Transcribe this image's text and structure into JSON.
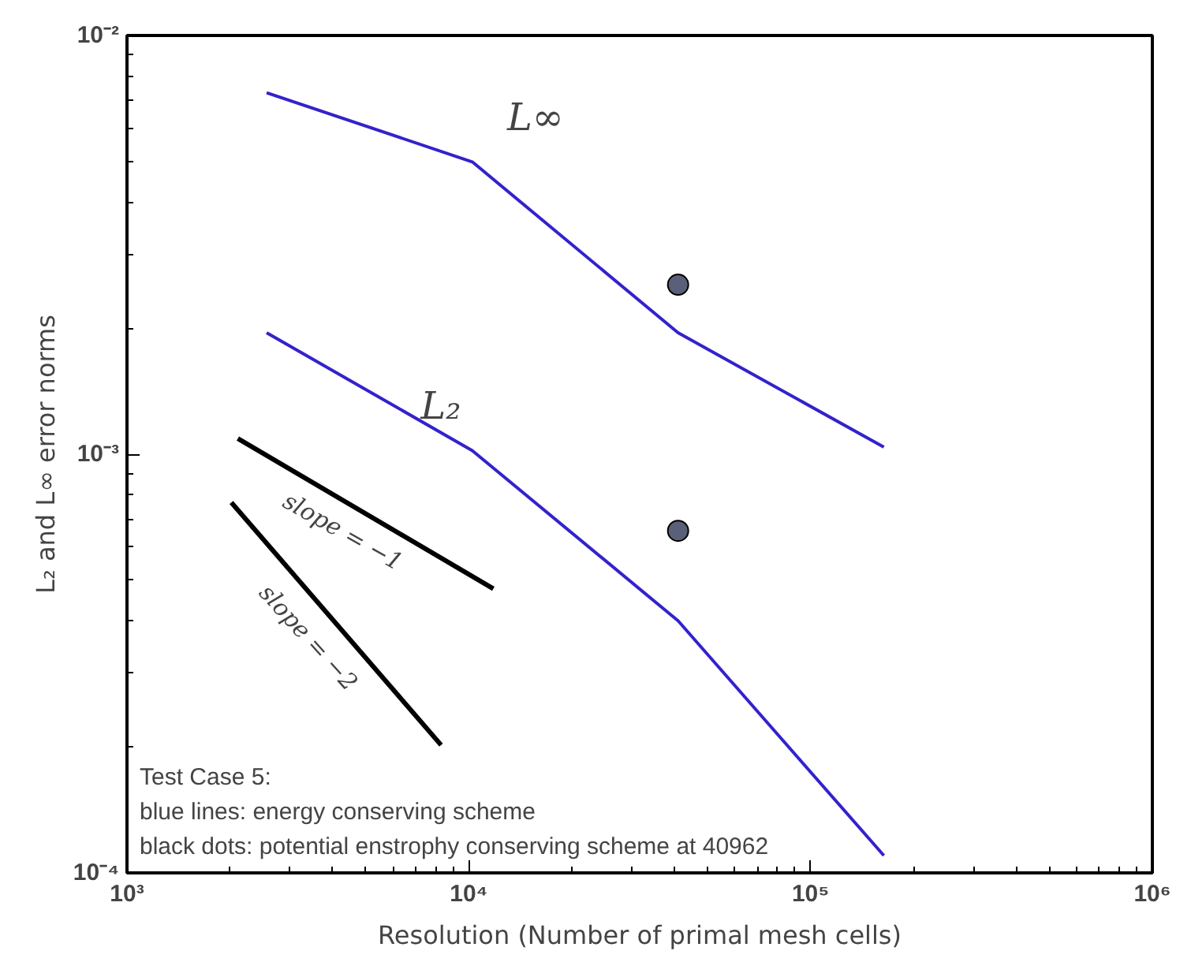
{
  "chart_data": {
    "type": "line",
    "xlabel": "Resolution (Number of primal mesh cells)",
    "ylabel": "L₂ and L∞ error norms",
    "log": "xy",
    "grid": false,
    "xlim": [
      1000,
      1000000
    ],
    "ylim": [
      0.0001,
      0.01
    ],
    "xticks": [
      {
        "value": 1000,
        "label": "10³"
      },
      {
        "value": 10000,
        "label": "10⁴"
      },
      {
        "value": 100000,
        "label": "10⁵"
      },
      {
        "value": 1000000,
        "label": "10⁶"
      }
    ],
    "yticks": [
      {
        "value": 0.0001,
        "label": "10⁻⁴"
      },
      {
        "value": 0.001,
        "label": "10⁻³"
      },
      {
        "value": 0.01,
        "label": "10⁻²"
      }
    ],
    "series": [
      {
        "name": "L∞",
        "color": "#3322cc",
        "x": [
          2562,
          10242,
          40962,
          163842
        ],
        "values": [
          0.0073,
          0.00499,
          0.00195,
          0.00104
        ]
      },
      {
        "name": "L₂",
        "color": "#3322cc",
        "x": [
          2562,
          10242,
          40962,
          163842
        ],
        "values": [
          0.00195,
          0.00102,
          0.0004,
          0.00011
        ]
      },
      {
        "name": "slope = −1",
        "color": "#000000",
        "x": [
          2110,
          11800
        ],
        "values": [
          0.00109,
          0.000477
        ]
      },
      {
        "name": "slope = −2",
        "color": "#000000",
        "x": [
          2020,
          8300
        ],
        "values": [
          0.000767,
          0.000202
        ]
      },
      {
        "type": "scatter",
        "color": "#5a6078",
        "marker": "circle",
        "x": [
          40962,
          40962
        ],
        "values": [
          0.00254,
          0.000656
        ]
      }
    ],
    "annotations": [
      "Test Case 5:",
      "    blue lines: energy conserving scheme",
      "    black dots: potential enstrophy conserving scheme at 40962"
    ]
  }
}
